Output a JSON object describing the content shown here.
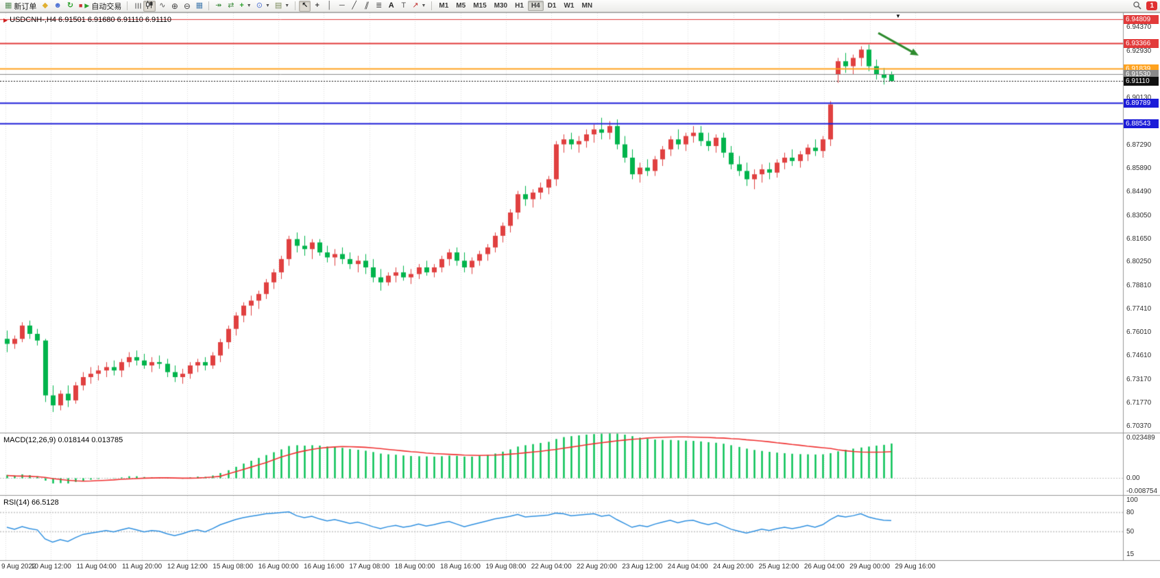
{
  "toolbar": {
    "new_order_label": "新订单",
    "autotrading_label": "自动交易",
    "timeframes": [
      "M1",
      "M5",
      "M15",
      "M30",
      "H1",
      "H4",
      "D1",
      "W1",
      "MN"
    ],
    "active_timeframe": "H4",
    "notification_count": "1"
  },
  "time_axis": {
    "labels": [
      "9 Aug 2022",
      "10 Aug 12:00",
      "11 Aug 04:00",
      "11 Aug 20:00",
      "12 Aug 12:00",
      "15 Aug 08:00",
      "16 Aug 00:00",
      "16 Aug 16:00",
      "17 Aug 08:00",
      "18 Aug 00:00",
      "18 Aug 16:00",
      "19 Aug 08:00",
      "22 Aug 04:00",
      "22 Aug 20:00",
      "23 Aug 12:00",
      "24 Aug 04:00",
      "24 Aug 20:00",
      "25 Aug 12:00",
      "26 Aug 04:00",
      "29 Aug 00:00",
      "29 Aug 16:00"
    ]
  },
  "chart_data": [
    {
      "type": "candlestick",
      "symbol": "USDCNH-",
      "timeframe": "H4",
      "title": "USDCNH-,H4  6.91501 6.91680 6.91110 6.91110",
      "open": "6.91501",
      "high": "6.91680",
      "low": "6.91110",
      "close": "6.91110",
      "ylim": [
        6.7,
        6.952
      ],
      "bull_color": "#e04040",
      "bear_color": "#00b44c",
      "y_ticks": [
        6.9437,
        6.9293,
        6.9013,
        6.8729,
        6.8589,
        6.8449,
        6.8305,
        6.8165,
        6.8025,
        6.7881,
        6.7741,
        6.7601,
        6.7461,
        6.7317,
        6.7177,
        6.7037
      ],
      "price_lines": [
        {
          "price": 6.94809,
          "label": "6.94809",
          "color": "#e23a3a",
          "style": "solid",
          "width": 1
        },
        {
          "price": 6.93366,
          "label": "6.93366",
          "color": "#e23a3a",
          "style": "solid",
          "width": 2
        },
        {
          "price": 6.91839,
          "label": "6.91839",
          "color": "#ffa21e",
          "style": "solid",
          "width": 2
        },
        {
          "price": 6.9153,
          "label": "6.91530",
          "color": "#8a8a8a",
          "style": "solid",
          "width": 1
        },
        {
          "price": 6.9111,
          "label": "6.91110",
          "color": "#101010",
          "style": "dotted",
          "width": 1
        },
        {
          "price": 6.89789,
          "label": "6.89789",
          "color": "#1c1cd8",
          "style": "solid",
          "width": 2
        },
        {
          "price": 6.88543,
          "label": "6.88543",
          "color": "#1c1cd8",
          "style": "solid",
          "width": 2
        }
      ],
      "annotations": [
        {
          "type": "trend-arrow",
          "color": "#2e8b2e",
          "from": {
            "i": 114.3,
            "price": 6.94
          },
          "to": {
            "i": 119.6,
            "price": 6.9264
          }
        }
      ],
      "ohlc": [
        [
          6.756,
          6.761,
          6.748,
          6.753
        ],
        [
          6.753,
          6.758,
          6.75,
          6.756
        ],
        [
          6.756,
          6.766,
          6.754,
          6.764
        ],
        [
          6.764,
          6.767,
          6.756,
          6.759
        ],
        [
          6.759,
          6.762,
          6.752,
          6.755
        ],
        [
          6.755,
          6.756,
          6.718,
          6.722
        ],
        [
          6.722,
          6.728,
          6.712,
          6.716
        ],
        [
          6.716,
          6.725,
          6.713,
          6.723
        ],
        [
          6.723,
          6.728,
          6.715,
          6.719
        ],
        [
          6.719,
          6.73,
          6.717,
          6.728
        ],
        [
          6.728,
          6.736,
          6.725,
          6.733
        ],
        [
          6.733,
          6.739,
          6.729,
          6.735
        ],
        [
          6.735,
          6.74,
          6.731,
          6.737
        ],
        [
          6.737,
          6.742,
          6.733,
          6.739
        ],
        [
          6.739,
          6.743,
          6.734,
          6.737
        ],
        [
          6.737,
          6.744,
          6.733,
          6.742
        ],
        [
          6.742,
          6.748,
          6.739,
          6.745
        ],
        [
          6.745,
          6.749,
          6.74,
          6.743
        ],
        [
          6.743,
          6.747,
          6.738,
          6.74
        ],
        [
          6.74,
          6.745,
          6.736,
          6.742
        ],
        [
          6.742,
          6.746,
          6.738,
          6.741
        ],
        [
          6.741,
          6.744,
          6.733,
          6.736
        ],
        [
          6.736,
          6.74,
          6.73,
          6.733
        ],
        [
          6.733,
          6.738,
          6.729,
          6.735
        ],
        [
          6.735,
          6.742,
          6.732,
          6.74
        ],
        [
          6.74,
          6.744,
          6.736,
          6.742
        ],
        [
          6.742,
          6.745,
          6.737,
          6.74
        ],
        [
          6.74,
          6.748,
          6.738,
          6.746
        ],
        [
          6.746,
          6.756,
          6.742,
          6.754
        ],
        [
          6.754,
          6.764,
          6.75,
          6.762
        ],
        [
          6.762,
          6.772,
          6.758,
          6.77
        ],
        [
          6.77,
          6.778,
          6.766,
          6.776
        ],
        [
          6.776,
          6.782,
          6.77,
          6.779
        ],
        [
          6.779,
          6.785,
          6.774,
          6.783
        ],
        [
          6.783,
          6.792,
          6.78,
          6.79
        ],
        [
          6.79,
          6.798,
          6.786,
          6.796
        ],
        [
          6.796,
          6.806,
          6.792,
          6.804
        ],
        [
          6.804,
          6.818,
          6.8,
          6.816
        ],
        [
          6.816,
          6.82,
          6.808,
          6.812
        ],
        [
          6.812,
          6.818,
          6.806,
          6.81
        ],
        [
          6.81,
          6.816,
          6.804,
          6.814
        ],
        [
          6.814,
          6.816,
          6.806,
          6.808
        ],
        [
          6.808,
          6.812,
          6.802,
          6.805
        ],
        [
          6.805,
          6.81,
          6.8,
          6.807
        ],
        [
          6.807,
          6.811,
          6.801,
          6.804
        ],
        [
          6.804,
          6.808,
          6.798,
          6.801
        ],
        [
          6.801,
          6.806,
          6.796,
          6.803
        ],
        [
          6.803,
          6.807,
          6.795,
          6.799
        ],
        [
          6.799,
          6.804,
          6.79,
          6.793
        ],
        [
          6.793,
          6.798,
          6.785,
          6.79
        ],
        [
          6.79,
          6.796,
          6.788,
          6.794
        ],
        [
          6.794,
          6.799,
          6.79,
          6.796
        ],
        [
          6.796,
          6.8,
          6.791,
          6.793
        ],
        [
          6.793,
          6.798,
          6.789,
          6.795
        ],
        [
          6.795,
          6.801,
          6.792,
          6.799
        ],
        [
          6.799,
          6.803,
          6.794,
          6.796
        ],
        [
          6.796,
          6.801,
          6.793,
          6.799
        ],
        [
          6.799,
          6.806,
          6.796,
          6.804
        ],
        [
          6.804,
          6.81,
          6.8,
          6.808
        ],
        [
          6.808,
          6.811,
          6.8,
          6.803
        ],
        [
          6.803,
          6.808,
          6.796,
          6.799
        ],
        [
          6.799,
          6.805,
          6.795,
          6.803
        ],
        [
          6.803,
          6.809,
          6.8,
          6.807
        ],
        [
          6.807,
          6.813,
          6.803,
          6.811
        ],
        [
          6.811,
          6.82,
          6.808,
          6.818
        ],
        [
          6.818,
          6.826,
          6.814,
          6.824
        ],
        [
          6.824,
          6.834,
          6.82,
          6.832
        ],
        [
          6.832,
          6.845,
          6.828,
          6.843
        ],
        [
          6.843,
          6.848,
          6.836,
          6.84
        ],
        [
          6.84,
          6.846,
          6.835,
          6.844
        ],
        [
          6.844,
          6.85,
          6.84,
          6.847
        ],
        [
          6.847,
          6.854,
          6.843,
          6.852
        ],
        [
          6.852,
          6.875,
          6.848,
          6.873
        ],
        [
          6.873,
          6.879,
          6.868,
          6.876
        ],
        [
          6.876,
          6.88,
          6.87,
          6.873
        ],
        [
          6.873,
          6.878,
          6.868,
          6.875
        ],
        [
          6.875,
          6.882,
          6.871,
          6.879
        ],
        [
          6.879,
          6.885,
          6.874,
          6.882
        ],
        [
          6.882,
          6.889,
          6.876,
          6.88
        ],
        [
          6.88,
          6.887,
          6.876,
          6.884
        ],
        [
          6.884,
          6.888,
          6.87,
          6.873
        ],
        [
          6.873,
          6.878,
          6.862,
          6.865
        ],
        [
          6.865,
          6.87,
          6.852,
          6.855
        ],
        [
          6.855,
          6.862,
          6.85,
          6.859
        ],
        [
          6.859,
          6.864,
          6.854,
          6.857
        ],
        [
          6.857,
          6.866,
          6.854,
          6.864
        ],
        [
          6.864,
          6.872,
          6.86,
          6.87
        ],
        [
          6.87,
          6.878,
          6.866,
          6.876
        ],
        [
          6.876,
          6.882,
          6.87,
          6.873
        ],
        [
          6.873,
          6.88,
          6.869,
          6.878
        ],
        [
          6.878,
          6.884,
          6.874,
          6.88
        ],
        [
          6.88,
          6.884,
          6.872,
          6.875
        ],
        [
          6.875,
          6.88,
          6.869,
          6.872
        ],
        [
          6.872,
          6.879,
          6.868,
          6.877
        ],
        [
          6.877,
          6.88,
          6.865,
          6.868
        ],
        [
          6.868,
          6.872,
          6.858,
          6.861
        ],
        [
          6.861,
          6.866,
          6.854,
          6.857
        ],
        [
          6.857,
          6.862,
          6.848,
          6.852
        ],
        [
          6.852,
          6.858,
          6.846,
          6.855
        ],
        [
          6.855,
          6.861,
          6.85,
          6.858
        ],
        [
          6.858,
          6.862,
          6.852,
          6.856
        ],
        [
          6.856,
          6.864,
          6.853,
          6.862
        ],
        [
          6.862,
          6.868,
          6.858,
          6.865
        ],
        [
          6.865,
          6.87,
          6.86,
          6.863
        ],
        [
          6.863,
          6.869,
          6.859,
          6.867
        ],
        [
          6.867,
          6.873,
          6.863,
          6.871
        ],
        [
          6.871,
          6.876,
          6.866,
          6.869
        ],
        [
          6.869,
          6.878,
          6.865,
          6.876
        ],
        [
          6.876,
          6.899,
          6.872,
          6.897
        ],
        [
          6.915,
          6.925,
          6.91,
          6.923
        ],
        [
          6.923,
          6.928,
          6.916,
          6.92
        ],
        [
          6.92,
          6.927,
          6.915,
          6.925
        ],
        [
          6.925,
          6.932,
          6.92,
          6.93
        ],
        [
          6.93,
          6.933,
          6.917,
          6.92
        ],
        [
          6.92,
          6.924,
          6.912,
          6.915
        ],
        [
          6.915,
          6.919,
          6.909,
          6.913
        ],
        [
          6.91501,
          6.9168,
          6.9111,
          6.9111
        ]
      ]
    },
    {
      "type": "macd",
      "title": "MACD(12,26,9) 0.018144 0.013785",
      "params": "12,26,9",
      "current_main": "0.018144",
      "current_signal": "0.013785",
      "ylim": [
        -0.008754,
        0.023489
      ],
      "histogram_color": "#00c050",
      "signal_color": "#f03030",
      "y_labels": [
        {
          "v": 0.023489,
          "t": "0.023489"
        },
        {
          "v": 0,
          "t": "0.00"
        },
        {
          "v": -0.008754,
          "t": "-0.008754"
        }
      ],
      "values": {
        "histogram": [
          0.0015,
          0.0012,
          0.0018,
          0.0014,
          0.0008,
          -0.0015,
          -0.003,
          -0.0028,
          -0.003,
          -0.0022,
          -0.0015,
          -0.001,
          -0.0006,
          -0.0003,
          -0.0004,
          0.0002,
          0.0008,
          0.0008,
          0.0004,
          0.0002,
          0.0003,
          0.0002,
          -0.0004,
          -0.0005,
          0.0002,
          0.0006,
          0.0005,
          0.0012,
          0.0025,
          0.004,
          0.0058,
          0.0075,
          0.009,
          0.0105,
          0.012,
          0.0135,
          0.015,
          0.0168,
          0.0172,
          0.017,
          0.0172,
          0.017,
          0.0165,
          0.0162,
          0.0158,
          0.0152,
          0.0148,
          0.0143,
          0.0136,
          0.0128,
          0.0124,
          0.0122,
          0.0118,
          0.0115,
          0.0114,
          0.0113,
          0.0112,
          0.0114,
          0.0117,
          0.0116,
          0.0112,
          0.0112,
          0.0115,
          0.012,
          0.0128,
          0.0138,
          0.015,
          0.0165,
          0.0172,
          0.0178,
          0.0184,
          0.019,
          0.0205,
          0.0215,
          0.022,
          0.0224,
          0.0228,
          0.0231,
          0.0233,
          0.0234,
          0.0233,
          0.0228,
          0.022,
          0.0212,
          0.0206,
          0.0202,
          0.02,
          0.02,
          0.0198,
          0.0196,
          0.0195,
          0.0192,
          0.0188,
          0.0185,
          0.018,
          0.0172,
          0.0163,
          0.0154,
          0.0147,
          0.0142,
          0.0137,
          0.0133,
          0.013,
          0.0127,
          0.0125,
          0.0124,
          0.0123,
          0.0124,
          0.013,
          0.014,
          0.0148,
          0.0154,
          0.016,
          0.0165,
          0.017,
          0.0174,
          0.0181
        ],
        "signal": [
          0.0012,
          0.001,
          0.0009,
          0.0008,
          0.0006,
          0.0002,
          -0.0004,
          -0.0009,
          -0.0013,
          -0.0016,
          -0.0018,
          -0.0017,
          -0.0015,
          -0.0013,
          -0.0011,
          -0.0008,
          -0.0006,
          -0.0004,
          -0.0002,
          -0.0001,
          0.0,
          0.0,
          -0.0001,
          -0.0002,
          -0.0002,
          -0.0001,
          0.0001,
          0.0004,
          0.0008,
          0.002,
          0.0032,
          0.0044,
          0.0056,
          0.0068,
          0.008,
          0.0095,
          0.011,
          0.0122,
          0.0133,
          0.0142,
          0.015,
          0.0156,
          0.016,
          0.0163,
          0.0165,
          0.0164,
          0.0163,
          0.0161,
          0.0158,
          0.0154,
          0.015,
          0.0146,
          0.0142,
          0.0138,
          0.0135,
          0.0131,
          0.0128,
          0.0126,
          0.0124,
          0.0122,
          0.012,
          0.0119,
          0.0118,
          0.0119,
          0.012,
          0.0122,
          0.0125,
          0.0128,
          0.0132,
          0.0136,
          0.014,
          0.0145,
          0.015,
          0.0156,
          0.0162,
          0.0168,
          0.0174,
          0.018,
          0.0185,
          0.019,
          0.0195,
          0.0199,
          0.0203,
          0.0206,
          0.021,
          0.0212,
          0.0214,
          0.0215,
          0.0216,
          0.0216,
          0.0215,
          0.0214,
          0.0213,
          0.0211,
          0.021,
          0.0207,
          0.0205,
          0.0201,
          0.0198,
          0.0194,
          0.019,
          0.0185,
          0.0181,
          0.0176,
          0.0172,
          0.0167,
          0.0163,
          0.0159,
          0.0155,
          0.0148,
          0.0143,
          0.0139,
          0.0136,
          0.0135,
          0.0135,
          0.0136,
          0.0138
        ]
      }
    },
    {
      "type": "rsi",
      "title": "RSI(14) 66.5128",
      "period": "14",
      "current": "66.5128",
      "ylim": [
        5,
        105
      ],
      "line_color": "#2d8fe0",
      "levels": [
        80,
        50
      ],
      "y_labels": [
        {
          "v": 100,
          "t": "100"
        },
        {
          "v": 80,
          "t": "80"
        },
        {
          "v": 50,
          "t": "50"
        },
        {
          "v": 15,
          "t": "15"
        }
      ],
      "values": [
        56,
        53,
        57,
        54,
        52,
        38,
        33,
        37,
        34,
        40,
        45,
        47,
        49,
        51,
        49,
        52,
        55,
        52,
        49,
        51,
        50,
        46,
        43,
        46,
        50,
        52,
        49,
        54,
        60,
        64,
        68,
        71,
        73,
        75,
        77,
        78,
        79,
        80,
        74,
        71,
        73,
        69,
        66,
        68,
        65,
        62,
        64,
        61,
        57,
        54,
        57,
        59,
        56,
        58,
        61,
        58,
        60,
        63,
        65,
        61,
        57,
        60,
        63,
        66,
        69,
        71,
        73,
        76,
        72,
        73,
        74,
        75,
        78,
        77,
        74,
        75,
        76,
        77,
        73,
        75,
        68,
        62,
        56,
        59,
        57,
        61,
        64,
        67,
        63,
        66,
        67,
        63,
        60,
        63,
        58,
        53,
        50,
        47,
        50,
        53,
        51,
        54,
        56,
        54,
        56,
        59,
        56,
        60,
        68,
        74,
        72,
        74,
        77,
        72,
        69,
        67,
        66.5
      ]
    }
  ]
}
